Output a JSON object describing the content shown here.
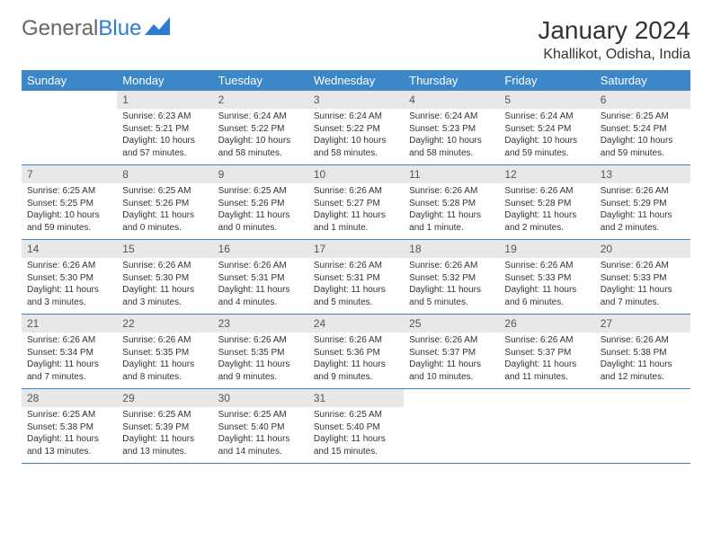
{
  "logo": {
    "text1": "General",
    "text2": "Blue"
  },
  "title": "January 2024",
  "location": "Khallikot, Odisha, India",
  "colors": {
    "header_bg": "#3b87c8",
    "header_text": "#ffffff",
    "daynum_bg": "#e8e8e8",
    "border": "#3b87c8",
    "body_text": "#333333"
  },
  "weekdays": [
    "Sunday",
    "Monday",
    "Tuesday",
    "Wednesday",
    "Thursday",
    "Friday",
    "Saturday"
  ],
  "weeks": [
    [
      {
        "day": "",
        "lines": []
      },
      {
        "day": "1",
        "lines": [
          "Sunrise: 6:23 AM",
          "Sunset: 5:21 PM",
          "Daylight: 10 hours and 57 minutes."
        ]
      },
      {
        "day": "2",
        "lines": [
          "Sunrise: 6:24 AM",
          "Sunset: 5:22 PM",
          "Daylight: 10 hours and 58 minutes."
        ]
      },
      {
        "day": "3",
        "lines": [
          "Sunrise: 6:24 AM",
          "Sunset: 5:22 PM",
          "Daylight: 10 hours and 58 minutes."
        ]
      },
      {
        "day": "4",
        "lines": [
          "Sunrise: 6:24 AM",
          "Sunset: 5:23 PM",
          "Daylight: 10 hours and 58 minutes."
        ]
      },
      {
        "day": "5",
        "lines": [
          "Sunrise: 6:24 AM",
          "Sunset: 5:24 PM",
          "Daylight: 10 hours and 59 minutes."
        ]
      },
      {
        "day": "6",
        "lines": [
          "Sunrise: 6:25 AM",
          "Sunset: 5:24 PM",
          "Daylight: 10 hours and 59 minutes."
        ]
      }
    ],
    [
      {
        "day": "7",
        "lines": [
          "Sunrise: 6:25 AM",
          "Sunset: 5:25 PM",
          "Daylight: 10 hours and 59 minutes."
        ]
      },
      {
        "day": "8",
        "lines": [
          "Sunrise: 6:25 AM",
          "Sunset: 5:26 PM",
          "Daylight: 11 hours and 0 minutes."
        ]
      },
      {
        "day": "9",
        "lines": [
          "Sunrise: 6:25 AM",
          "Sunset: 5:26 PM",
          "Daylight: 11 hours and 0 minutes."
        ]
      },
      {
        "day": "10",
        "lines": [
          "Sunrise: 6:26 AM",
          "Sunset: 5:27 PM",
          "Daylight: 11 hours and 1 minute."
        ]
      },
      {
        "day": "11",
        "lines": [
          "Sunrise: 6:26 AM",
          "Sunset: 5:28 PM",
          "Daylight: 11 hours and 1 minute."
        ]
      },
      {
        "day": "12",
        "lines": [
          "Sunrise: 6:26 AM",
          "Sunset: 5:28 PM",
          "Daylight: 11 hours and 2 minutes."
        ]
      },
      {
        "day": "13",
        "lines": [
          "Sunrise: 6:26 AM",
          "Sunset: 5:29 PM",
          "Daylight: 11 hours and 2 minutes."
        ]
      }
    ],
    [
      {
        "day": "14",
        "lines": [
          "Sunrise: 6:26 AM",
          "Sunset: 5:30 PM",
          "Daylight: 11 hours and 3 minutes."
        ]
      },
      {
        "day": "15",
        "lines": [
          "Sunrise: 6:26 AM",
          "Sunset: 5:30 PM",
          "Daylight: 11 hours and 3 minutes."
        ]
      },
      {
        "day": "16",
        "lines": [
          "Sunrise: 6:26 AM",
          "Sunset: 5:31 PM",
          "Daylight: 11 hours and 4 minutes."
        ]
      },
      {
        "day": "17",
        "lines": [
          "Sunrise: 6:26 AM",
          "Sunset: 5:31 PM",
          "Daylight: 11 hours and 5 minutes."
        ]
      },
      {
        "day": "18",
        "lines": [
          "Sunrise: 6:26 AM",
          "Sunset: 5:32 PM",
          "Daylight: 11 hours and 5 minutes."
        ]
      },
      {
        "day": "19",
        "lines": [
          "Sunrise: 6:26 AM",
          "Sunset: 5:33 PM",
          "Daylight: 11 hours and 6 minutes."
        ]
      },
      {
        "day": "20",
        "lines": [
          "Sunrise: 6:26 AM",
          "Sunset: 5:33 PM",
          "Daylight: 11 hours and 7 minutes."
        ]
      }
    ],
    [
      {
        "day": "21",
        "lines": [
          "Sunrise: 6:26 AM",
          "Sunset: 5:34 PM",
          "Daylight: 11 hours and 7 minutes."
        ]
      },
      {
        "day": "22",
        "lines": [
          "Sunrise: 6:26 AM",
          "Sunset: 5:35 PM",
          "Daylight: 11 hours and 8 minutes."
        ]
      },
      {
        "day": "23",
        "lines": [
          "Sunrise: 6:26 AM",
          "Sunset: 5:35 PM",
          "Daylight: 11 hours and 9 minutes."
        ]
      },
      {
        "day": "24",
        "lines": [
          "Sunrise: 6:26 AM",
          "Sunset: 5:36 PM",
          "Daylight: 11 hours and 9 minutes."
        ]
      },
      {
        "day": "25",
        "lines": [
          "Sunrise: 6:26 AM",
          "Sunset: 5:37 PM",
          "Daylight: 11 hours and 10 minutes."
        ]
      },
      {
        "day": "26",
        "lines": [
          "Sunrise: 6:26 AM",
          "Sunset: 5:37 PM",
          "Daylight: 11 hours and 11 minutes."
        ]
      },
      {
        "day": "27",
        "lines": [
          "Sunrise: 6:26 AM",
          "Sunset: 5:38 PM",
          "Daylight: 11 hours and 12 minutes."
        ]
      }
    ],
    [
      {
        "day": "28",
        "lines": [
          "Sunrise: 6:25 AM",
          "Sunset: 5:38 PM",
          "Daylight: 11 hours and 13 minutes."
        ]
      },
      {
        "day": "29",
        "lines": [
          "Sunrise: 6:25 AM",
          "Sunset: 5:39 PM",
          "Daylight: 11 hours and 13 minutes."
        ]
      },
      {
        "day": "30",
        "lines": [
          "Sunrise: 6:25 AM",
          "Sunset: 5:40 PM",
          "Daylight: 11 hours and 14 minutes."
        ]
      },
      {
        "day": "31",
        "lines": [
          "Sunrise: 6:25 AM",
          "Sunset: 5:40 PM",
          "Daylight: 11 hours and 15 minutes."
        ]
      },
      {
        "day": "",
        "lines": []
      },
      {
        "day": "",
        "lines": []
      },
      {
        "day": "",
        "lines": []
      }
    ]
  ]
}
